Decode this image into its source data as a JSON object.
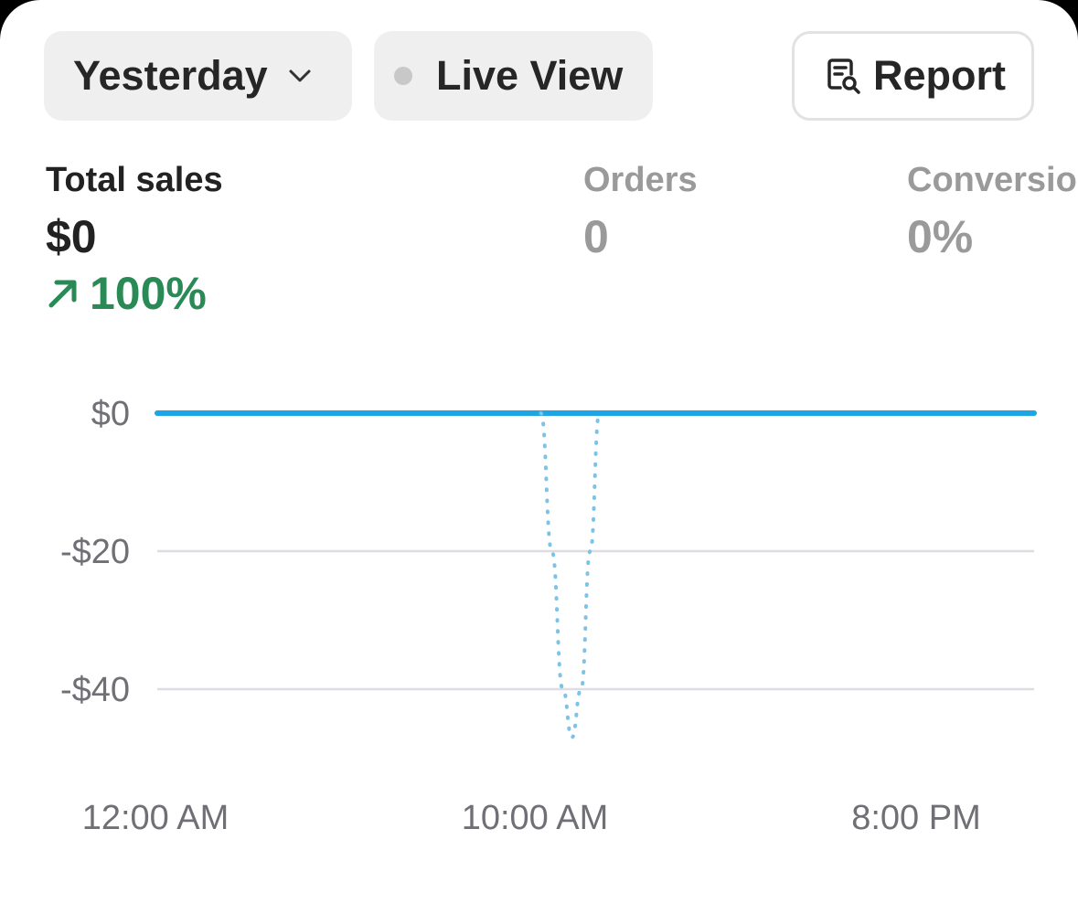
{
  "filters": {
    "date_range": {
      "label": "Yesterday",
      "icon": "chevron-down-icon"
    },
    "live_view": {
      "label": "Live View",
      "indicator_color": "#c8c8c8"
    },
    "report": {
      "label": "Report",
      "icon": "report-search-icon"
    }
  },
  "metrics": {
    "total_sales": {
      "label": "Total sales",
      "value": "$0",
      "change": "100%",
      "change_icon": "arrow-up-right-icon",
      "change_color": "#2a8a56"
    },
    "orders": {
      "label": "Orders",
      "value": "0"
    },
    "conversion": {
      "label": "Conversio",
      "value": "0%"
    }
  },
  "chart_data": {
    "type": "line",
    "y_tick_labels": [
      "$0",
      "-$20",
      "-$40"
    ],
    "y_ticks": [
      0,
      -20,
      -40
    ],
    "x_tick_labels": [
      "12:00 AM",
      "10:00 AM",
      "8:00 PM"
    ],
    "ylim": [
      -55,
      0
    ],
    "series": [
      {
        "style": "solid",
        "color": "#1ea6e4",
        "x": [
          0,
          24
        ],
        "y": [
          0,
          0
        ]
      },
      {
        "style": "dotted",
        "color": "#7cc3e6",
        "x": [
          10.5,
          10.8,
          11.1,
          11.35,
          11.6,
          11.85,
          12.1
        ],
        "y": [
          0,
          -20,
          -40,
          -47,
          -40,
          -20,
          0
        ]
      }
    ]
  }
}
